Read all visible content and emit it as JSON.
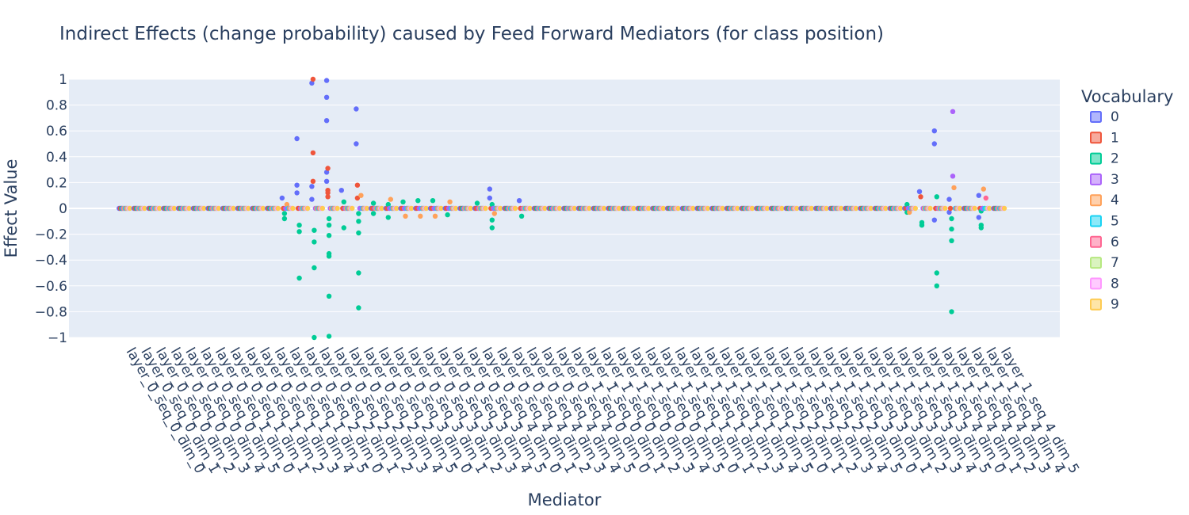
{
  "chart_data": {
    "type": "scatter",
    "title": "Indirect Effects (change probability) caused by Feed Forward Mediators (for class position)",
    "xlabel": "Mediator",
    "ylabel": "Effect Value",
    "ylim": [
      -1,
      1
    ],
    "yticks": [
      {
        "value": 1,
        "label": "1"
      },
      {
        "value": 0.8,
        "label": "0.8"
      },
      {
        "value": 0.6,
        "label": "0.6"
      },
      {
        "value": 0.4,
        "label": "0.4"
      },
      {
        "value": 0.2,
        "label": "0.2"
      },
      {
        "value": 0,
        "label": "0"
      },
      {
        "value": -0.2,
        "label": "−0.2"
      },
      {
        "value": -0.4,
        "label": "−0.4"
      },
      {
        "value": -0.6,
        "label": "−0.6"
      },
      {
        "value": -0.8,
        "label": "−0.8"
      },
      {
        "value": -1,
        "label": "−1"
      }
    ],
    "grid": true,
    "legend_title": "Vocabulary",
    "legend_position": "right",
    "categories": [
      "layer_0_seq_0_dim_0",
      "layer_0_seq_0_dim_1",
      "layer_0_seq_0_dim_2",
      "layer_0_seq_0_dim_3",
      "layer_0_seq_0_dim_4",
      "layer_0_seq_0_dim_5",
      "layer_0_seq_1_dim_0",
      "layer_0_seq_1_dim_1",
      "layer_0_seq_1_dim_2",
      "layer_0_seq_1_dim_3",
      "layer_0_seq_1_dim_4",
      "layer_0_seq_1_dim_5",
      "layer_0_seq_2_dim_0",
      "layer_0_seq_2_dim_1",
      "layer_0_seq_2_dim_2",
      "layer_0_seq_2_dim_3",
      "layer_0_seq_2_dim_4",
      "layer_0_seq_2_dim_5",
      "layer_0_seq_3_dim_0",
      "layer_0_seq_3_dim_1",
      "layer_0_seq_3_dim_2",
      "layer_0_seq_3_dim_3",
      "layer_0_seq_3_dim_4",
      "layer_0_seq_3_dim_5",
      "layer_0_seq_4_dim_0",
      "layer_0_seq_4_dim_1",
      "layer_0_seq_4_dim_2",
      "layer_0_seq_4_dim_3",
      "layer_0_seq_4_dim_4",
      "layer_0_seq_4_dim_5",
      "layer_1_seq_0_dim_0",
      "layer_1_seq_0_dim_1",
      "layer_1_seq_0_dim_2",
      "layer_1_seq_0_dim_3",
      "layer_1_seq_0_dim_4",
      "layer_1_seq_0_dim_5",
      "layer_1_seq_1_dim_0",
      "layer_1_seq_1_dim_1",
      "layer_1_seq_1_dim_2",
      "layer_1_seq_1_dim_3",
      "layer_1_seq_1_dim_4",
      "layer_1_seq_1_dim_5",
      "layer_1_seq_2_dim_0",
      "layer_1_seq_2_dim_1",
      "layer_1_seq_2_dim_2",
      "layer_1_seq_2_dim_3",
      "layer_1_seq_2_dim_4",
      "layer_1_seq_2_dim_5",
      "layer_1_seq_3_dim_0",
      "layer_1_seq_3_dim_1",
      "layer_1_seq_3_dim_2",
      "layer_1_seq_3_dim_3",
      "layer_1_seq_3_dim_4",
      "layer_1_seq_3_dim_5",
      "layer_1_seq_4_dim_0",
      "layer_1_seq_4_dim_1",
      "layer_1_seq_4_dim_2",
      "layer_1_seq_4_dim_3",
      "layer_1_seq_4_dim_4",
      "layer_1_seq_4_dim_5"
    ],
    "series": [
      {
        "name": "0",
        "color": "#636efa"
      },
      {
        "name": "1",
        "color": "#EF553B"
      },
      {
        "name": "2",
        "color": "#00cc96"
      },
      {
        "name": "3",
        "color": "#ab63fa"
      },
      {
        "name": "4",
        "color": "#FFA15A"
      },
      {
        "name": "5",
        "color": "#19d3f3"
      },
      {
        "name": "6",
        "color": "#FF6692"
      },
      {
        "name": "7",
        "color": "#B6E880"
      },
      {
        "name": "8",
        "color": "#FF97FF"
      },
      {
        "name": "9",
        "color": "#FECB52"
      }
    ],
    "nonzero_points": [
      {
        "category": "layer_0_seq_1_dim_5",
        "series": "0",
        "values": [
          0.08
        ]
      },
      {
        "category": "layer_0_seq_1_dim_5",
        "series": "2",
        "values": [
          -0.04,
          -0.08
        ]
      },
      {
        "category": "layer_0_seq_1_dim_5",
        "series": "4",
        "values": [
          0.03
        ]
      },
      {
        "category": "layer_0_seq_2_dim_0",
        "series": "0",
        "values": [
          0.54,
          0.18,
          0.12
        ]
      },
      {
        "category": "layer_0_seq_2_dim_0",
        "series": "2",
        "values": [
          -0.13,
          -0.18,
          -0.54
        ]
      },
      {
        "category": "layer_0_seq_2_dim_1",
        "series": "0",
        "values": [
          0.97,
          0.17,
          0.07
        ]
      },
      {
        "category": "layer_0_seq_2_dim_1",
        "series": "1",
        "values": [
          1.0,
          0.43,
          0.21
        ]
      },
      {
        "category": "layer_0_seq_2_dim_1",
        "series": "2",
        "values": [
          -0.17,
          -0.26,
          -0.46,
          -1.0
        ]
      },
      {
        "category": "layer_0_seq_2_dim_2",
        "series": "0",
        "values": [
          0.99,
          0.86,
          0.68,
          0.28,
          0.21
        ]
      },
      {
        "category": "layer_0_seq_2_dim_2",
        "series": "1",
        "values": [
          0.31,
          0.14,
          0.12,
          0.09
        ]
      },
      {
        "category": "layer_0_seq_2_dim_2",
        "series": "2",
        "values": [
          -0.08,
          -0.13,
          -0.21,
          -0.35,
          -0.37,
          -0.68,
          -0.99
        ]
      },
      {
        "category": "layer_0_seq_2_dim_3",
        "series": "0",
        "values": [
          0.14
        ]
      },
      {
        "category": "layer_0_seq_2_dim_3",
        "series": "2",
        "values": [
          0.05,
          -0.15
        ]
      },
      {
        "category": "layer_0_seq_2_dim_4",
        "series": "0",
        "values": [
          0.77,
          0.5
        ]
      },
      {
        "category": "layer_0_seq_2_dim_4",
        "series": "1",
        "values": [
          0.18,
          0.08
        ]
      },
      {
        "category": "layer_0_seq_2_dim_4",
        "series": "2",
        "values": [
          -0.04,
          -0.1,
          -0.19,
          -0.5,
          -0.77
        ]
      },
      {
        "category": "layer_0_seq_2_dim_4",
        "series": "4",
        "values": [
          0.1
        ]
      },
      {
        "category": "layer_0_seq_2_dim_5",
        "series": "2",
        "values": [
          0.04,
          -0.04
        ]
      },
      {
        "category": "layer_0_seq_3_dim_0",
        "series": "2",
        "values": [
          0.03,
          -0.07
        ]
      },
      {
        "category": "layer_0_seq_3_dim_0",
        "series": "4",
        "values": [
          0.07
        ]
      },
      {
        "category": "layer_0_seq_3_dim_1",
        "series": "2",
        "values": [
          0.05
        ]
      },
      {
        "category": "layer_0_seq_3_dim_1",
        "series": "4",
        "values": [
          -0.06
        ]
      },
      {
        "category": "layer_0_seq_3_dim_2",
        "series": "2",
        "values": [
          0.06
        ]
      },
      {
        "category": "layer_0_seq_3_dim_2",
        "series": "4",
        "values": [
          -0.06
        ]
      },
      {
        "category": "layer_0_seq_3_dim_3",
        "series": "2",
        "values": [
          0.06
        ]
      },
      {
        "category": "layer_0_seq_3_dim_3",
        "series": "4",
        "values": [
          -0.06
        ]
      },
      {
        "category": "layer_0_seq_3_dim_4",
        "series": "2",
        "values": [
          -0.05
        ]
      },
      {
        "category": "layer_0_seq_3_dim_4",
        "series": "4",
        "values": [
          0.05
        ]
      },
      {
        "category": "layer_0_seq_4_dim_0",
        "series": "2",
        "values": [
          0.04
        ]
      },
      {
        "category": "layer_0_seq_4_dim_1",
        "series": "0",
        "values": [
          0.15,
          0.08
        ]
      },
      {
        "category": "layer_0_seq_4_dim_1",
        "series": "2",
        "values": [
          0.03,
          -0.09,
          -0.15
        ]
      },
      {
        "category": "layer_0_seq_4_dim_1",
        "series": "4",
        "values": [
          -0.04
        ]
      },
      {
        "category": "layer_0_seq_4_dim_3",
        "series": "0",
        "values": [
          0.06
        ]
      },
      {
        "category": "layer_0_seq_4_dim_3",
        "series": "2",
        "values": [
          -0.06
        ]
      },
      {
        "category": "layer_1_seq_3_dim_5",
        "series": "2",
        "values": [
          0.03,
          -0.03
        ]
      },
      {
        "category": "layer_1_seq_3_dim_5",
        "series": "4",
        "values": [
          -0.03
        ]
      },
      {
        "category": "layer_1_seq_4_dim_0",
        "series": "0",
        "values": [
          0.13
        ]
      },
      {
        "category": "layer_1_seq_4_dim_0",
        "series": "1",
        "values": [
          0.09
        ]
      },
      {
        "category": "layer_1_seq_4_dim_0",
        "series": "2",
        "values": [
          -0.11,
          -0.13
        ]
      },
      {
        "category": "layer_1_seq_4_dim_1",
        "series": "0",
        "values": [
          0.6,
          0.5,
          -0.09
        ]
      },
      {
        "category": "layer_1_seq_4_dim_1",
        "series": "2",
        "values": [
          0.09,
          -0.5,
          -0.6
        ]
      },
      {
        "category": "layer_1_seq_4_dim_2",
        "series": "0",
        "values": [
          0.07,
          -0.03
        ]
      },
      {
        "category": "layer_1_seq_4_dim_2",
        "series": "2",
        "values": [
          -0.08,
          -0.16,
          -0.25,
          -0.8
        ]
      },
      {
        "category": "layer_1_seq_4_dim_2",
        "series": "3",
        "values": [
          0.75,
          0.25
        ]
      },
      {
        "category": "layer_1_seq_4_dim_2",
        "series": "4",
        "values": [
          0.16
        ]
      },
      {
        "category": "layer_1_seq_4_dim_4",
        "series": "0",
        "values": [
          0.1,
          -0.07
        ]
      },
      {
        "category": "layer_1_seq_4_dim_4",
        "series": "2",
        "values": [
          -0.13,
          -0.15,
          -0.02
        ]
      },
      {
        "category": "layer_1_seq_4_dim_4",
        "series": "4",
        "values": [
          0.15
        ]
      },
      {
        "category": "layer_1_seq_4_dim_4",
        "series": "6",
        "values": [
          0.08
        ]
      }
    ],
    "default_value": 0
  }
}
